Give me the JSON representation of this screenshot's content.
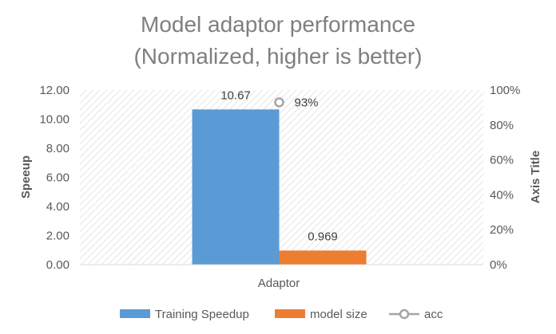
{
  "chart_data": {
    "type": "bar",
    "title_lines": [
      "Model adaptor performance",
      "(Normalized, higher is better)"
    ],
    "categories": [
      "Adaptor"
    ],
    "series": [
      {
        "name": "Training Speedup",
        "kind": "bar",
        "axis": "primary",
        "values": [
          10.67
        ],
        "color": "#5B9BD5",
        "label": "10.67"
      },
      {
        "name": "model size",
        "kind": "bar",
        "axis": "primary",
        "values": [
          0.969
        ],
        "color": "#ED7D31",
        "label": "0.969"
      },
      {
        "name": "acc",
        "kind": "line-marker",
        "axis": "secondary",
        "values": [
          0.93
        ],
        "color": "#A5A5A5",
        "label": "93%"
      }
    ],
    "ylabel": "Speeup",
    "y2label": "Axis Title",
    "ylim": [
      0,
      12
    ],
    "yticks": [
      "0.00",
      "2.00",
      "4.00",
      "6.00",
      "8.00",
      "10.00",
      "12.00"
    ],
    "y2lim": [
      0,
      1
    ],
    "y2ticks": [
      "0%",
      "20%",
      "40%",
      "60%",
      "80%",
      "100%"
    ],
    "legend_position": "bottom",
    "grid": false,
    "plot_background": "diagonal hatch"
  }
}
